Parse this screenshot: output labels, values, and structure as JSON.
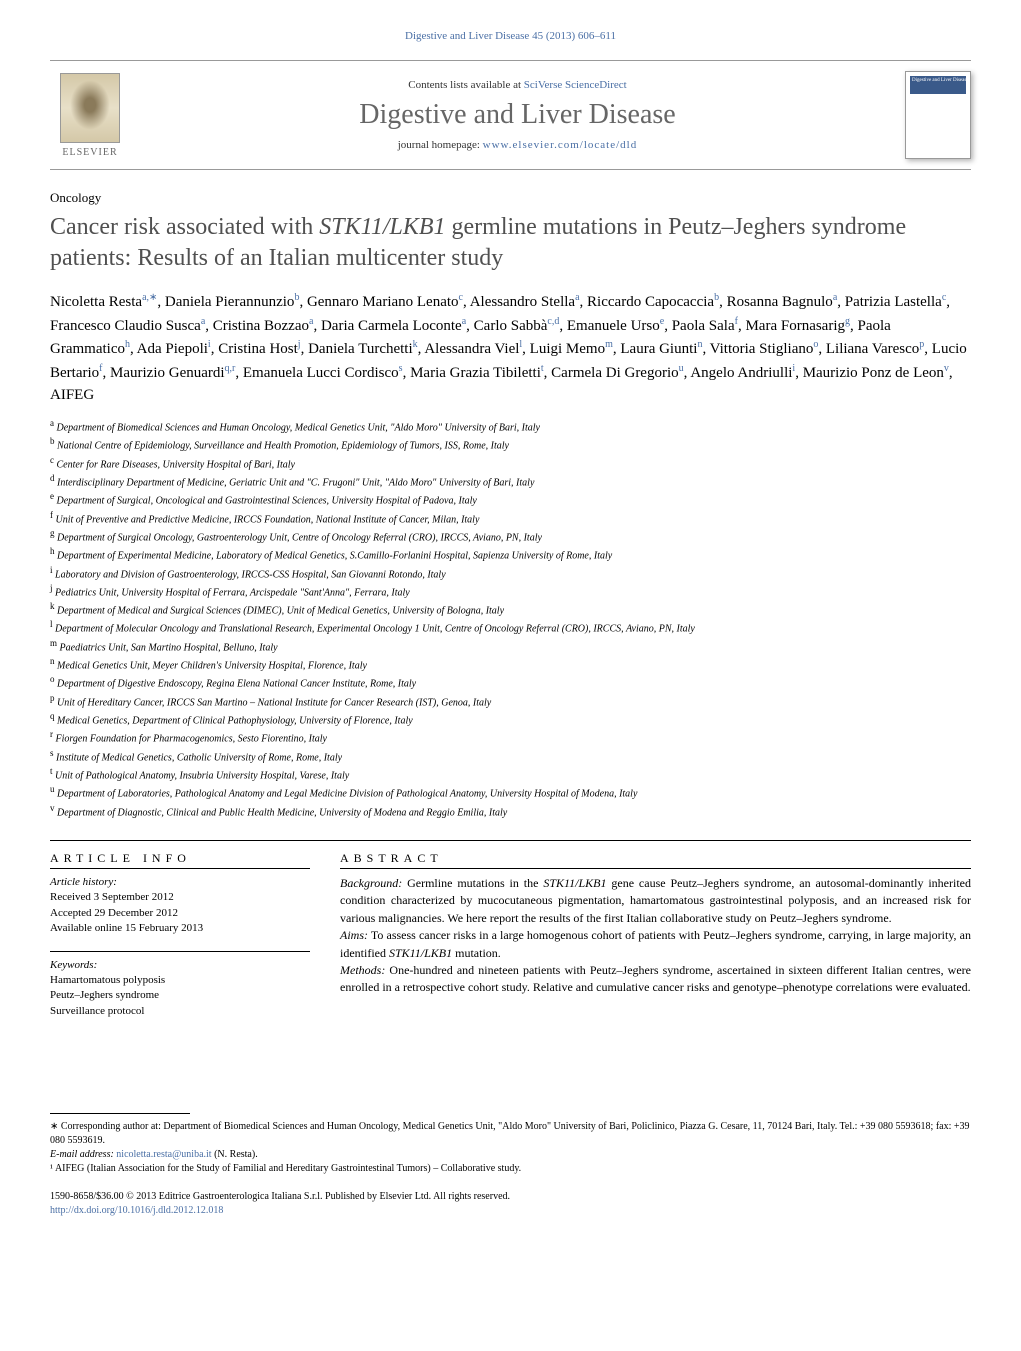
{
  "header": {
    "citation": "Digestive and Liver Disease 45 (2013) 606–611",
    "contents_prefix": "Contents lists available at ",
    "contents_link": "SciVerse ScienceDirect",
    "journal_name": "Digestive and Liver Disease",
    "homepage_prefix": "journal homepage: ",
    "homepage_url": "www.elsevier.com/locate/dld",
    "elsevier_label": "ELSEVIER",
    "cover_text": "Digestive and Liver Disease"
  },
  "section_label": "Oncology",
  "title_pre": "Cancer risk associated with ",
  "title_gene": "STK11/LKB1",
  "title_post": " germline mutations in Peutz–Jeghers syndrome patients: Results of an Italian multicenter study",
  "authors": [
    {
      "name": "Nicoletta Resta",
      "sup": "a,∗"
    },
    {
      "name": "Daniela Pierannunzio",
      "sup": "b"
    },
    {
      "name": "Gennaro Mariano Lenato",
      "sup": "c"
    },
    {
      "name": "Alessandro Stella",
      "sup": "a"
    },
    {
      "name": "Riccardo Capocaccia",
      "sup": "b"
    },
    {
      "name": "Rosanna Bagnulo",
      "sup": "a"
    },
    {
      "name": "Patrizia Lastella",
      "sup": "c"
    },
    {
      "name": "Francesco Claudio Susca",
      "sup": "a"
    },
    {
      "name": "Cristina Bozzao",
      "sup": "a"
    },
    {
      "name": "Daria Carmela Loconte",
      "sup": "a"
    },
    {
      "name": "Carlo Sabbà",
      "sup": "c,d"
    },
    {
      "name": "Emanuele Urso",
      "sup": "e"
    },
    {
      "name": "Paola Sala",
      "sup": "f"
    },
    {
      "name": "Mara Fornasarig",
      "sup": "g"
    },
    {
      "name": "Paola Grammatico",
      "sup": "h"
    },
    {
      "name": "Ada Piepoli",
      "sup": "i"
    },
    {
      "name": "Cristina Host",
      "sup": "j"
    },
    {
      "name": "Daniela Turchetti",
      "sup": "k"
    },
    {
      "name": "Alessandra Viel",
      "sup": "l"
    },
    {
      "name": "Luigi Memo",
      "sup": "m"
    },
    {
      "name": "Laura Giunti",
      "sup": "n"
    },
    {
      "name": "Vittoria Stigliano",
      "sup": "o"
    },
    {
      "name": "Liliana Varesco",
      "sup": "p"
    },
    {
      "name": "Lucio Bertario",
      "sup": "f"
    },
    {
      "name": "Maurizio Genuardi",
      "sup": "q,r"
    },
    {
      "name": "Emanuela Lucci Cordisco",
      "sup": "s"
    },
    {
      "name": "Maria Grazia Tibiletti",
      "sup": "t"
    },
    {
      "name": "Carmela Di Gregorio",
      "sup": "u"
    },
    {
      "name": "Angelo Andriulli",
      "sup": "i"
    },
    {
      "name": "Maurizio Ponz de Leon",
      "sup": "v"
    },
    {
      "name": "AIFEG",
      "sup": ""
    }
  ],
  "affiliations": [
    {
      "sup": "a",
      "text": "Department of Biomedical Sciences and Human Oncology, Medical Genetics Unit, \"Aldo Moro\" University of Bari, Italy"
    },
    {
      "sup": "b",
      "text": "National Centre of Epidemiology, Surveillance and Health Promotion, Epidemiology of Tumors, ISS, Rome, Italy"
    },
    {
      "sup": "c",
      "text": "Center for Rare Diseases, University Hospital of Bari, Italy"
    },
    {
      "sup": "d",
      "text": "Interdisciplinary Department of Medicine, Geriatric Unit and \"C. Frugoni\" Unit, \"Aldo Moro\" University of Bari, Italy"
    },
    {
      "sup": "e",
      "text": "Department of Surgical, Oncological and Gastrointestinal Sciences, University Hospital of Padova, Italy"
    },
    {
      "sup": "f",
      "text": "Unit of Preventive and Predictive Medicine, IRCCS Foundation, National Institute of Cancer, Milan, Italy"
    },
    {
      "sup": "g",
      "text": "Department of Surgical Oncology, Gastroenterology Unit, Centre of Oncology Referral (CRO), IRCCS, Aviano, PN, Italy"
    },
    {
      "sup": "h",
      "text": "Department of Experimental Medicine, Laboratory of Medical Genetics, S.Camillo-Forlanini Hospital, Sapienza University of Rome, Italy"
    },
    {
      "sup": "i",
      "text": "Laboratory and Division of Gastroenterology, IRCCS-CSS Hospital, San Giovanni Rotondo, Italy"
    },
    {
      "sup": "j",
      "text": "Pediatrics Unit, University Hospital of Ferrara, Arcispedale \"Sant'Anna\", Ferrara, Italy"
    },
    {
      "sup": "k",
      "text": "Department of Medical and Surgical Sciences (DIMEC), Unit of Medical Genetics, University of Bologna, Italy"
    },
    {
      "sup": "l",
      "text": "Department of Molecular Oncology and Translational Research, Experimental Oncology 1 Unit, Centre of Oncology Referral (CRO), IRCCS, Aviano, PN, Italy"
    },
    {
      "sup": "m",
      "text": "Paediatrics Unit, San Martino Hospital, Belluno, Italy"
    },
    {
      "sup": "n",
      "text": "Medical Genetics Unit, Meyer Children's University Hospital, Florence, Italy"
    },
    {
      "sup": "o",
      "text": "Department of Digestive Endoscopy, Regina Elena National Cancer Institute, Rome, Italy"
    },
    {
      "sup": "p",
      "text": "Unit of Hereditary Cancer, IRCCS San Martino – National Institute for Cancer Research (IST), Genoa, Italy"
    },
    {
      "sup": "q",
      "text": "Medical Genetics, Department of Clinical Pathophysiology, University of Florence, Italy"
    },
    {
      "sup": "r",
      "text": "Fiorgen Foundation for Pharmacogenomics, Sesto Fiorentino, Italy"
    },
    {
      "sup": "s",
      "text": "Institute of Medical Genetics, Catholic University of Rome, Rome, Italy"
    },
    {
      "sup": "t",
      "text": "Unit of Pathological Anatomy, Insubria University Hospital, Varese, Italy"
    },
    {
      "sup": "u",
      "text": "Department of Laboratories, Pathological Anatomy and Legal Medicine Division of Pathological Anatomy, University Hospital of Modena, Italy"
    },
    {
      "sup": "v",
      "text": "Department of Diagnostic, Clinical and Public Health Medicine, University of Modena and Reggio Emilia, Italy"
    }
  ],
  "article_info": {
    "heading": "ARTICLE INFO",
    "history_label": "Article history:",
    "received": "Received 3 September 2012",
    "accepted": "Accepted 29 December 2012",
    "online": "Available online 15 February 2013",
    "keywords_label": "Keywords:",
    "keywords": [
      "Hamartomatous polyposis",
      "Peutz–Jeghers syndrome",
      "Surveillance protocol"
    ]
  },
  "abstract": {
    "heading": "ABSTRACT",
    "background_label": "Background:",
    "background_pre": " Germline mutations in the ",
    "background_gene": "STK11/LKB1",
    "background_post": " gene cause Peutz–Jeghers syndrome, an autosomal-dominantly inherited condition characterized by mucocutaneous pigmentation, hamartomatous gastrointestinal polyposis, and an increased risk for various malignancies. We here report the results of the first Italian collaborative study on Peutz–Jeghers syndrome.",
    "aims_label": "Aims:",
    "aims_pre": " To assess cancer risks in a large homogenous cohort of patients with Peutz–Jeghers syndrome, carrying, in large majority, an identified ",
    "aims_gene": "STK11/LKB1",
    "aims_post": " mutation.",
    "methods_label": "Methods:",
    "methods": " One-hundred and nineteen patients with Peutz–Jeghers syndrome, ascertained in sixteen different Italian centres, were enrolled in a retrospective cohort study. Relative and cumulative cancer risks and genotype–phenotype correlations were evaluated."
  },
  "footnotes": {
    "corresponding": "∗ Corresponding author at: Department of Biomedical Sciences and Human Oncology, Medical Genetics Unit, \"Aldo Moro\" University of Bari, Policlinico, Piazza G. Cesare, 11, 70124 Bari, Italy. Tel.: +39 080 5593618; fax: +39 080 5593619.",
    "email_label": "E-mail address: ",
    "email": "nicoletta.resta@uniba.it",
    "email_author": " (N. Resta).",
    "note1": "¹ AIFEG (Italian Association for the Study of Familial and Hereditary Gastrointestinal Tumors) – Collaborative study."
  },
  "copyright": {
    "line1": "1590-8658/$36.00 © 2013 Editrice Gastroenterologica Italiana S.r.l. Published by Elsevier Ltd. All rights reserved.",
    "doi_url": "http://dx.doi.org/10.1016/j.dld.2012.12.018"
  },
  "colors": {
    "link": "#4a6fa5",
    "title_gray": "#505050",
    "journal_gray": "#666666"
  }
}
